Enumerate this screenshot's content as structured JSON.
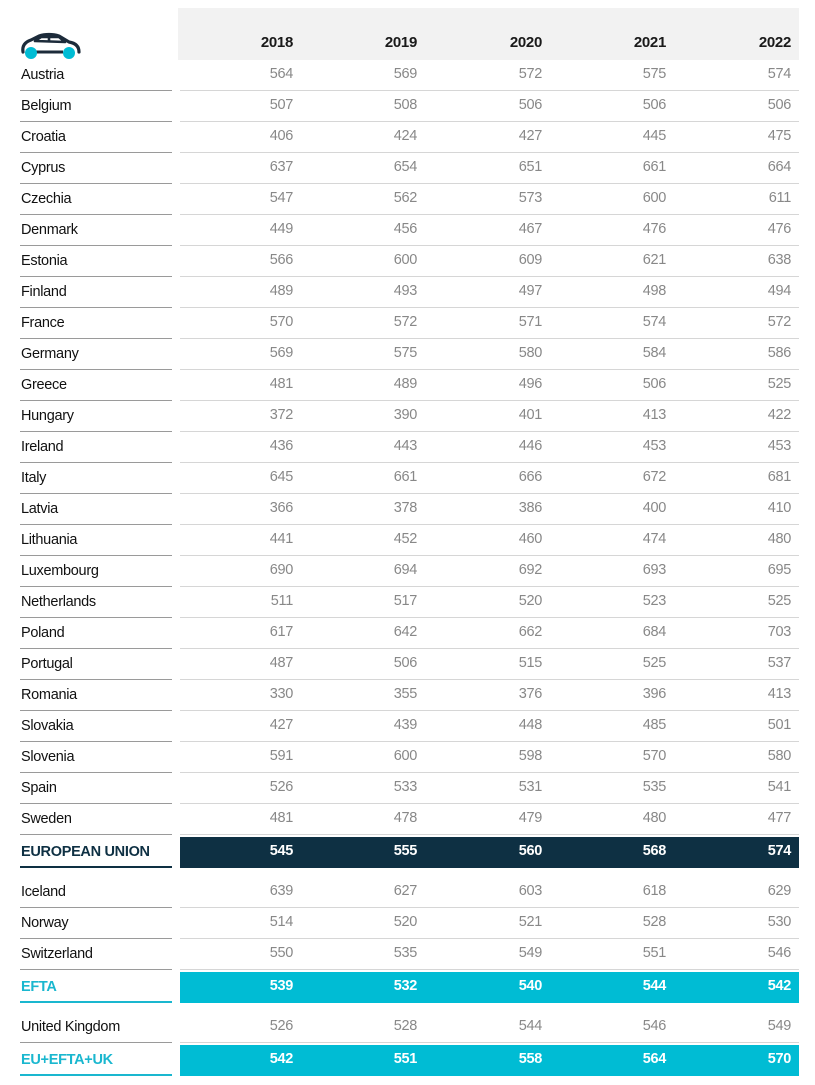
{
  "header": {
    "icon": "car-icon",
    "years": [
      "2018",
      "2019",
      "2020",
      "2021",
      "2022"
    ]
  },
  "colors": {
    "eu_band": "#0e3043",
    "efta_band": "#00bcd4",
    "header_bg": "#f2f2f2",
    "value_text": "#888888"
  },
  "rows": [
    {
      "label": "Austria",
      "values": [
        "564",
        "569",
        "572",
        "575",
        "574"
      ]
    },
    {
      "label": "Belgium",
      "values": [
        "507",
        "508",
        "506",
        "506",
        "506"
      ]
    },
    {
      "label": "Croatia",
      "values": [
        "406",
        "424",
        "427",
        "445",
        "475"
      ]
    },
    {
      "label": "Cyprus",
      "values": [
        "637",
        "654",
        "651",
        "661",
        "664"
      ]
    },
    {
      "label": "Czechia",
      "values": [
        "547",
        "562",
        "573",
        "600",
        "611"
      ]
    },
    {
      "label": "Denmark",
      "values": [
        "449",
        "456",
        "467",
        "476",
        "476"
      ]
    },
    {
      "label": "Estonia",
      "values": [
        "566",
        "600",
        "609",
        "621",
        "638"
      ]
    },
    {
      "label": "Finland",
      "values": [
        "489",
        "493",
        "497",
        "498",
        "494"
      ]
    },
    {
      "label": "France",
      "values": [
        "570",
        "572",
        "571",
        "574",
        "572"
      ]
    },
    {
      "label": "Germany",
      "values": [
        "569",
        "575",
        "580",
        "584",
        "586"
      ]
    },
    {
      "label": "Greece",
      "values": [
        "481",
        "489",
        "496",
        "506",
        "525"
      ]
    },
    {
      "label": "Hungary",
      "values": [
        "372",
        "390",
        "401",
        "413",
        "422"
      ]
    },
    {
      "label": "Ireland",
      "values": [
        "436",
        "443",
        "446",
        "453",
        "453"
      ]
    },
    {
      "label": "Italy",
      "values": [
        "645",
        "661",
        "666",
        "672",
        "681"
      ]
    },
    {
      "label": "Latvia",
      "values": [
        "366",
        "378",
        "386",
        "400",
        "410"
      ]
    },
    {
      "label": "Lithuania",
      "values": [
        "441",
        "452",
        "460",
        "474",
        "480"
      ]
    },
    {
      "label": "Luxembourg",
      "values": [
        "690",
        "694",
        "692",
        "693",
        "695"
      ]
    },
    {
      "label": "Netherlands",
      "values": [
        "511",
        "517",
        "520",
        "523",
        "525"
      ]
    },
    {
      "label": "Poland",
      "values": [
        "617",
        "642",
        "662",
        "684",
        "703"
      ]
    },
    {
      "label": "Portugal",
      "values": [
        "487",
        "506",
        "515",
        "525",
        "537"
      ]
    },
    {
      "label": "Romania",
      "values": [
        "330",
        "355",
        "376",
        "396",
        "413"
      ]
    },
    {
      "label": "Slovakia",
      "values": [
        "427",
        "439",
        "448",
        "485",
        "501"
      ]
    },
    {
      "label": "Slovenia",
      "values": [
        "591",
        "600",
        "598",
        "570",
        "580"
      ]
    },
    {
      "label": "Spain",
      "values": [
        "526",
        "533",
        "531",
        "535",
        "541"
      ]
    },
    {
      "label": "Sweden",
      "values": [
        "481",
        "478",
        "479",
        "480",
        "477"
      ]
    },
    {
      "label": "EUROPEAN UNION",
      "values": [
        "545",
        "555",
        "560",
        "568",
        "574"
      ]
    },
    {
      "label": "Iceland",
      "values": [
        "639",
        "627",
        "603",
        "618",
        "629"
      ]
    },
    {
      "label": "Norway",
      "values": [
        "514",
        "520",
        "521",
        "528",
        "530"
      ]
    },
    {
      "label": "Switzerland",
      "values": [
        "550",
        "535",
        "549",
        "551",
        "546"
      ]
    },
    {
      "label": "EFTA",
      "values": [
        "539",
        "532",
        "540",
        "544",
        "542"
      ]
    },
    {
      "label": "United Kingdom",
      "values": [
        "526",
        "528",
        "544",
        "546",
        "549"
      ]
    },
    {
      "label": "EU+EFTA+UK",
      "values": [
        "542",
        "551",
        "558",
        "564",
        "570"
      ]
    }
  ],
  "chart_data": {
    "type": "table",
    "title": "",
    "columns": [
      "2018",
      "2019",
      "2020",
      "2021",
      "2022"
    ],
    "categories": [
      "Austria",
      "Belgium",
      "Croatia",
      "Cyprus",
      "Czechia",
      "Denmark",
      "Estonia",
      "Finland",
      "France",
      "Germany",
      "Greece",
      "Hungary",
      "Ireland",
      "Italy",
      "Latvia",
      "Lithuania",
      "Luxembourg",
      "Netherlands",
      "Poland",
      "Portugal",
      "Romania",
      "Slovakia",
      "Slovenia",
      "Spain",
      "Sweden",
      "EUROPEAN UNION",
      "Iceland",
      "Norway",
      "Switzerland",
      "EFTA",
      "United Kingdom",
      "EU+EFTA+UK"
    ],
    "series": [
      {
        "name": "2018",
        "values": [
          564,
          507,
          406,
          637,
          547,
          449,
          566,
          489,
          570,
          569,
          481,
          372,
          436,
          645,
          366,
          441,
          690,
          511,
          617,
          487,
          330,
          427,
          591,
          526,
          481,
          545,
          639,
          514,
          550,
          539,
          526,
          542
        ]
      },
      {
        "name": "2019",
        "values": [
          569,
          508,
          424,
          654,
          562,
          456,
          600,
          493,
          572,
          575,
          489,
          390,
          443,
          661,
          378,
          452,
          694,
          517,
          642,
          506,
          355,
          439,
          600,
          533,
          478,
          555,
          627,
          520,
          535,
          532,
          528,
          551
        ]
      },
      {
        "name": "2020",
        "values": [
          572,
          506,
          427,
          651,
          573,
          467,
          609,
          497,
          571,
          580,
          496,
          401,
          446,
          666,
          386,
          460,
          692,
          520,
          662,
          515,
          376,
          448,
          598,
          531,
          479,
          560,
          603,
          521,
          549,
          540,
          544,
          558
        ]
      },
      {
        "name": "2021",
        "values": [
          575,
          506,
          445,
          661,
          600,
          476,
          621,
          498,
          574,
          584,
          506,
          413,
          453,
          672,
          400,
          474,
          693,
          523,
          684,
          525,
          396,
          485,
          570,
          535,
          480,
          568,
          618,
          528,
          551,
          544,
          546,
          564
        ]
      },
      {
        "name": "2022",
        "values": [
          574,
          506,
          475,
          664,
          611,
          476,
          638,
          494,
          572,
          586,
          525,
          422,
          453,
          681,
          410,
          480,
          695,
          525,
          703,
          537,
          413,
          501,
          580,
          541,
          477,
          574,
          629,
          530,
          546,
          542,
          549,
          570
        ]
      }
    ],
    "highlighted_rows": [
      "EUROPEAN UNION",
      "EFTA",
      "EU+EFTA+UK"
    ]
  }
}
